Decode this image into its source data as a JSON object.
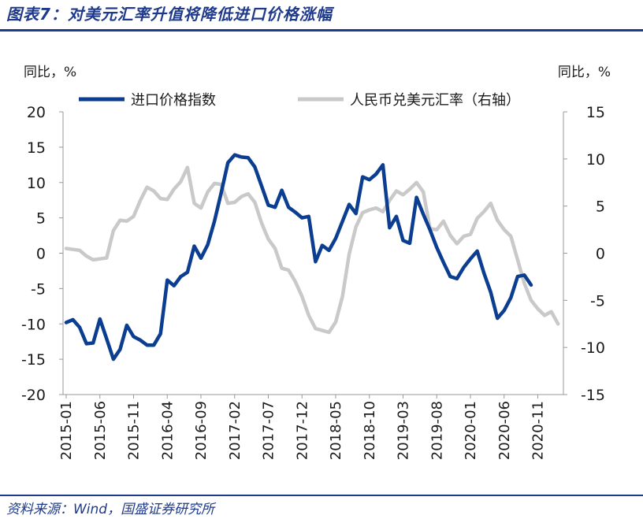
{
  "header": {
    "title": "图表7：对美元汇率升值将降低进口价格涨幅"
  },
  "footer": {
    "source": "资料来源：Wind，国盛证券研究所"
  },
  "chart_data": {
    "type": "line",
    "left_unit_label": "同比，%",
    "right_unit_label": "同比，%",
    "y_left_lim": [
      -20,
      20
    ],
    "y_left_ticks": [
      "20",
      "15",
      "10",
      "5",
      "0",
      "-5",
      "-10",
      "-15",
      "-20"
    ],
    "y_right_lim": [
      -15,
      15
    ],
    "y_right_ticks": [
      "15",
      "10",
      "5",
      "0",
      "-5",
      "-10",
      "-15"
    ],
    "x_tick_labels": [
      "2015-01",
      "2015-06",
      "2015-11",
      "2016-04",
      "2016-09",
      "2017-02",
      "2017-07",
      "2017-12",
      "2018-05",
      "2018-10",
      "2019-03",
      "2019-08",
      "2020-01",
      "2020-06",
      "2020-11"
    ],
    "start_month": "2015-01",
    "series": [
      {
        "name": "进口价格指数",
        "axis": "left",
        "color": "#0b3d91",
        "values": [
          -9.8,
          -9.4,
          -10.5,
          -12.8,
          -12.7,
          -9.3,
          -12.1,
          -15.0,
          -13.6,
          -10.2,
          -11.8,
          -12.3,
          -13.0,
          -13.0,
          -11.4,
          -3.8,
          -4.6,
          -3.3,
          -2.7,
          1.0,
          -0.7,
          1.2,
          4.5,
          8.5,
          12.8,
          13.9,
          13.6,
          13.5,
          12.2,
          9.5,
          6.8,
          6.5,
          8.9,
          6.5,
          5.8,
          5.0,
          5.2,
          -1.2,
          1.1,
          0.4,
          2.1,
          4.5,
          6.9,
          5.6,
          10.8,
          10.4,
          11.2,
          12.5,
          3.6,
          5.2,
          1.8,
          1.4,
          7.9,
          5.5,
          3.3,
          0.8,
          -1.3,
          -3.3,
          -3.6,
          -2.0,
          -0.8,
          0.3,
          -2.8,
          -5.5,
          -9.2,
          -8.1,
          -6.3,
          -3.3,
          -3.1,
          -4.5
        ]
      },
      {
        "name": "人民币兑美元汇率（右轴）",
        "axis": "right",
        "color": "#c9c9c9",
        "values": [
          0.5,
          0.4,
          0.3,
          -0.3,
          -0.7,
          -0.6,
          -0.5,
          2.4,
          3.5,
          3.4,
          3.9,
          5.6,
          7.0,
          6.6,
          5.8,
          5.7,
          6.8,
          7.6,
          9.1,
          5.3,
          4.8,
          6.5,
          7.4,
          7.3,
          5.3,
          5.4,
          6.0,
          6.3,
          5.4,
          3.2,
          1.5,
          0.5,
          -1.6,
          -1.8,
          -3.0,
          -4.6,
          -6.6,
          -8.0,
          -8.2,
          -8.4,
          -7.3,
          -4.6,
          -0.1,
          2.8,
          4.3,
          4.6,
          4.8,
          4.4,
          5.6,
          6.6,
          6.2,
          6.8,
          7.5,
          6.5,
          2.6,
          2.5,
          3.4,
          1.9,
          1.0,
          1.8,
          2.0,
          3.7,
          4.4,
          5.3,
          3.5,
          2.5,
          1.8,
          -0.7,
          -3.2,
          -5.0,
          -5.9,
          -6.6,
          -6.2,
          -7.5
        ]
      }
    ]
  }
}
